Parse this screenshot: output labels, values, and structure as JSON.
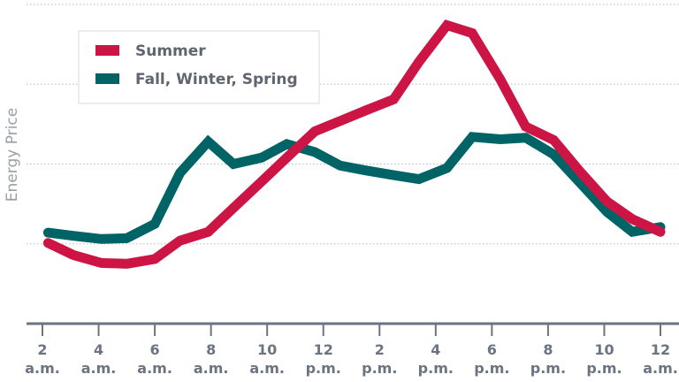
{
  "chart_data": {
    "type": "line",
    "title": "",
    "xlabel": "",
    "ylabel": "Energy Price",
    "x_unit": "hour of day",
    "xlim": [
      2,
      24
    ],
    "ylim": [
      0,
      4
    ],
    "grid": true,
    "legend_position": "top-left",
    "x_ticks": [
      {
        "value": 2,
        "line1": "2",
        "line2": "a.m."
      },
      {
        "value": 4,
        "line1": "4",
        "line2": "a.m."
      },
      {
        "value": 6,
        "line1": "6",
        "line2": "a.m."
      },
      {
        "value": 8,
        "line1": "8",
        "line2": "a.m."
      },
      {
        "value": 10,
        "line1": "10",
        "line2": "a.m."
      },
      {
        "value": 12,
        "line1": "12",
        "line2": "p.m."
      },
      {
        "value": 14,
        "line1": "2",
        "line2": "p.m."
      },
      {
        "value": 16,
        "line1": "4",
        "line2": "p.m."
      },
      {
        "value": 18,
        "line1": "6",
        "line2": "p.m."
      },
      {
        "value": 20,
        "line1": "8",
        "line2": "p.m."
      },
      {
        "value": 22,
        "line1": "10",
        "line2": "p.m."
      },
      {
        "value": 24,
        "line1": "12",
        "line2": "a.m."
      }
    ],
    "x": [
      2.2,
      3.1,
      4.1,
      5.0,
      6.0,
      6.9,
      7.9,
      8.8,
      9.8,
      10.7,
      11.7,
      12.6,
      13.5,
      14.5,
      15.4,
      16.4,
      17.3,
      18.3,
      19.2,
      20.2,
      21.1,
      22.1,
      23.0,
      24.0
    ],
    "series": [
      {
        "name": "Summer",
        "color": "#cc1445",
        "values": [
          1.01,
          0.86,
          0.76,
          0.75,
          0.81,
          1.04,
          1.15,
          1.45,
          1.78,
          2.08,
          2.41,
          2.54,
          2.67,
          2.81,
          3.28,
          3.74,
          3.64,
          3.06,
          2.47,
          2.3,
          1.92,
          1.53,
          1.31,
          1.15
        ]
      },
      {
        "name": "Fall, Winter, Spring",
        "color": "#006466",
        "values": [
          1.14,
          1.1,
          1.06,
          1.07,
          1.25,
          1.89,
          2.28,
          2.0,
          2.08,
          2.25,
          2.15,
          1.98,
          1.92,
          1.86,
          1.81,
          1.95,
          2.34,
          2.31,
          2.33,
          2.12,
          1.78,
          1.4,
          1.15,
          1.21
        ]
      }
    ]
  }
}
